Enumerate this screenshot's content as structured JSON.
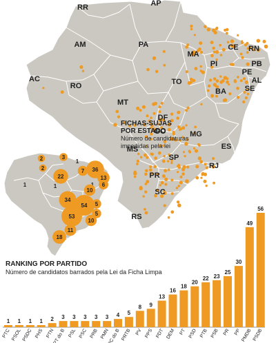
{
  "colors": {
    "land": "#cbc8c1",
    "border": "#ffffff",
    "dot": "#ef9a23",
    "bar": "#ef9a23",
    "text": "#1f1f1f"
  },
  "state_labels": [
    "RR",
    "AP",
    "AM",
    "PA",
    "MA",
    "CE",
    "RN",
    "PB",
    "PE",
    "AL",
    "SE",
    "AC",
    "RO",
    "TO",
    "PI",
    "BA",
    "MT",
    "GO",
    "DF",
    "MG",
    "ES",
    "MS",
    "SP",
    "RJ",
    "PR",
    "SC",
    "RS"
  ],
  "fichas_legend": {
    "title": "FICHAS-SUJAS\nPOR ESTADO",
    "subtitle": "Número de candidaturas\nimpedidas pela lei"
  },
  "state_counts": [
    3,
    2,
    1,
    2,
    1,
    1,
    22,
    7,
    36,
    13,
    6,
    10,
    1,
    34,
    54,
    5,
    5,
    53,
    10,
    11,
    18
  ],
  "chart_data": {
    "type": "bar",
    "title": "RANKING POR PARTIDO",
    "subtitle": "Número de candidatos barrados pela Lei da Ficha Limpa",
    "categories": [
      "PTC",
      "PSOL",
      "PSDC",
      "PHS",
      "PTN",
      "PT do B",
      "PSL",
      "PSC",
      "PRB",
      "PMN",
      "PC do B",
      "PRTB",
      "PV",
      "PPS",
      "PDT",
      "DEM",
      "PT",
      "PSD",
      "PTB",
      "PSB",
      "PR",
      "PP",
      "PMDB",
      "PSDB"
    ],
    "values": [
      1,
      1,
      1,
      1,
      2,
      3,
      3,
      3,
      3,
      3,
      4,
      5,
      8,
      9,
      13,
      16,
      18,
      20,
      22,
      23,
      25,
      30,
      49,
      56
    ],
    "ylim": [
      0,
      56
    ]
  }
}
